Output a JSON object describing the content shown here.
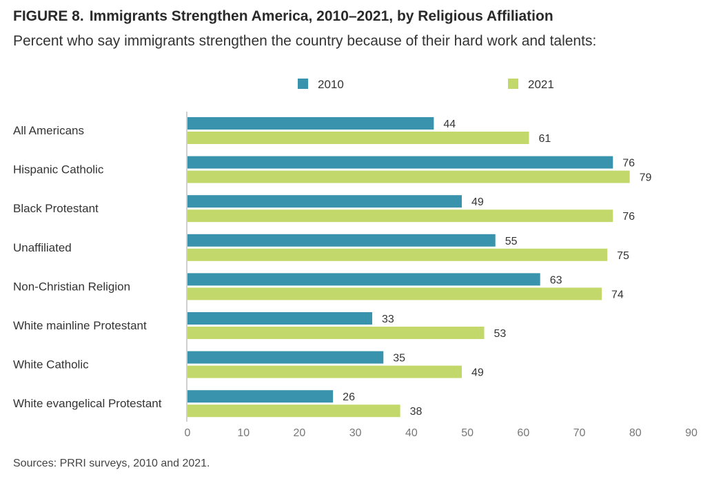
{
  "figure": {
    "label": "FIGURE 8.",
    "title": "Immigrants Strengthen America, 2010–2021, by Religious Affiliation",
    "subtitle": "Percent who say immigrants strengthen the country because of their hard work and talents:",
    "source": "Sources: PRRI surveys, 2010 and 2021."
  },
  "chart_data": {
    "type": "bar",
    "orientation": "horizontal",
    "categories": [
      "All Americans",
      "Hispanic Catholic",
      "Black Protestant",
      "Unaffiliated",
      "Non-Christian Religion",
      "White mainline Protestant",
      "White Catholic",
      "White evangelical Protestant"
    ],
    "series": [
      {
        "name": "2010",
        "color": "#3a93ac",
        "values": [
          44,
          76,
          49,
          55,
          63,
          33,
          35,
          26
        ]
      },
      {
        "name": "2021",
        "color": "#c3d86b",
        "values": [
          61,
          79,
          76,
          75,
          74,
          53,
          49,
          38
        ]
      }
    ],
    "xlim": [
      0,
      90
    ],
    "xticks": [
      0,
      10,
      20,
      30,
      40,
      50,
      60,
      70,
      80,
      90
    ],
    "grid": false,
    "legend_position": "top",
    "data_labels": true
  }
}
